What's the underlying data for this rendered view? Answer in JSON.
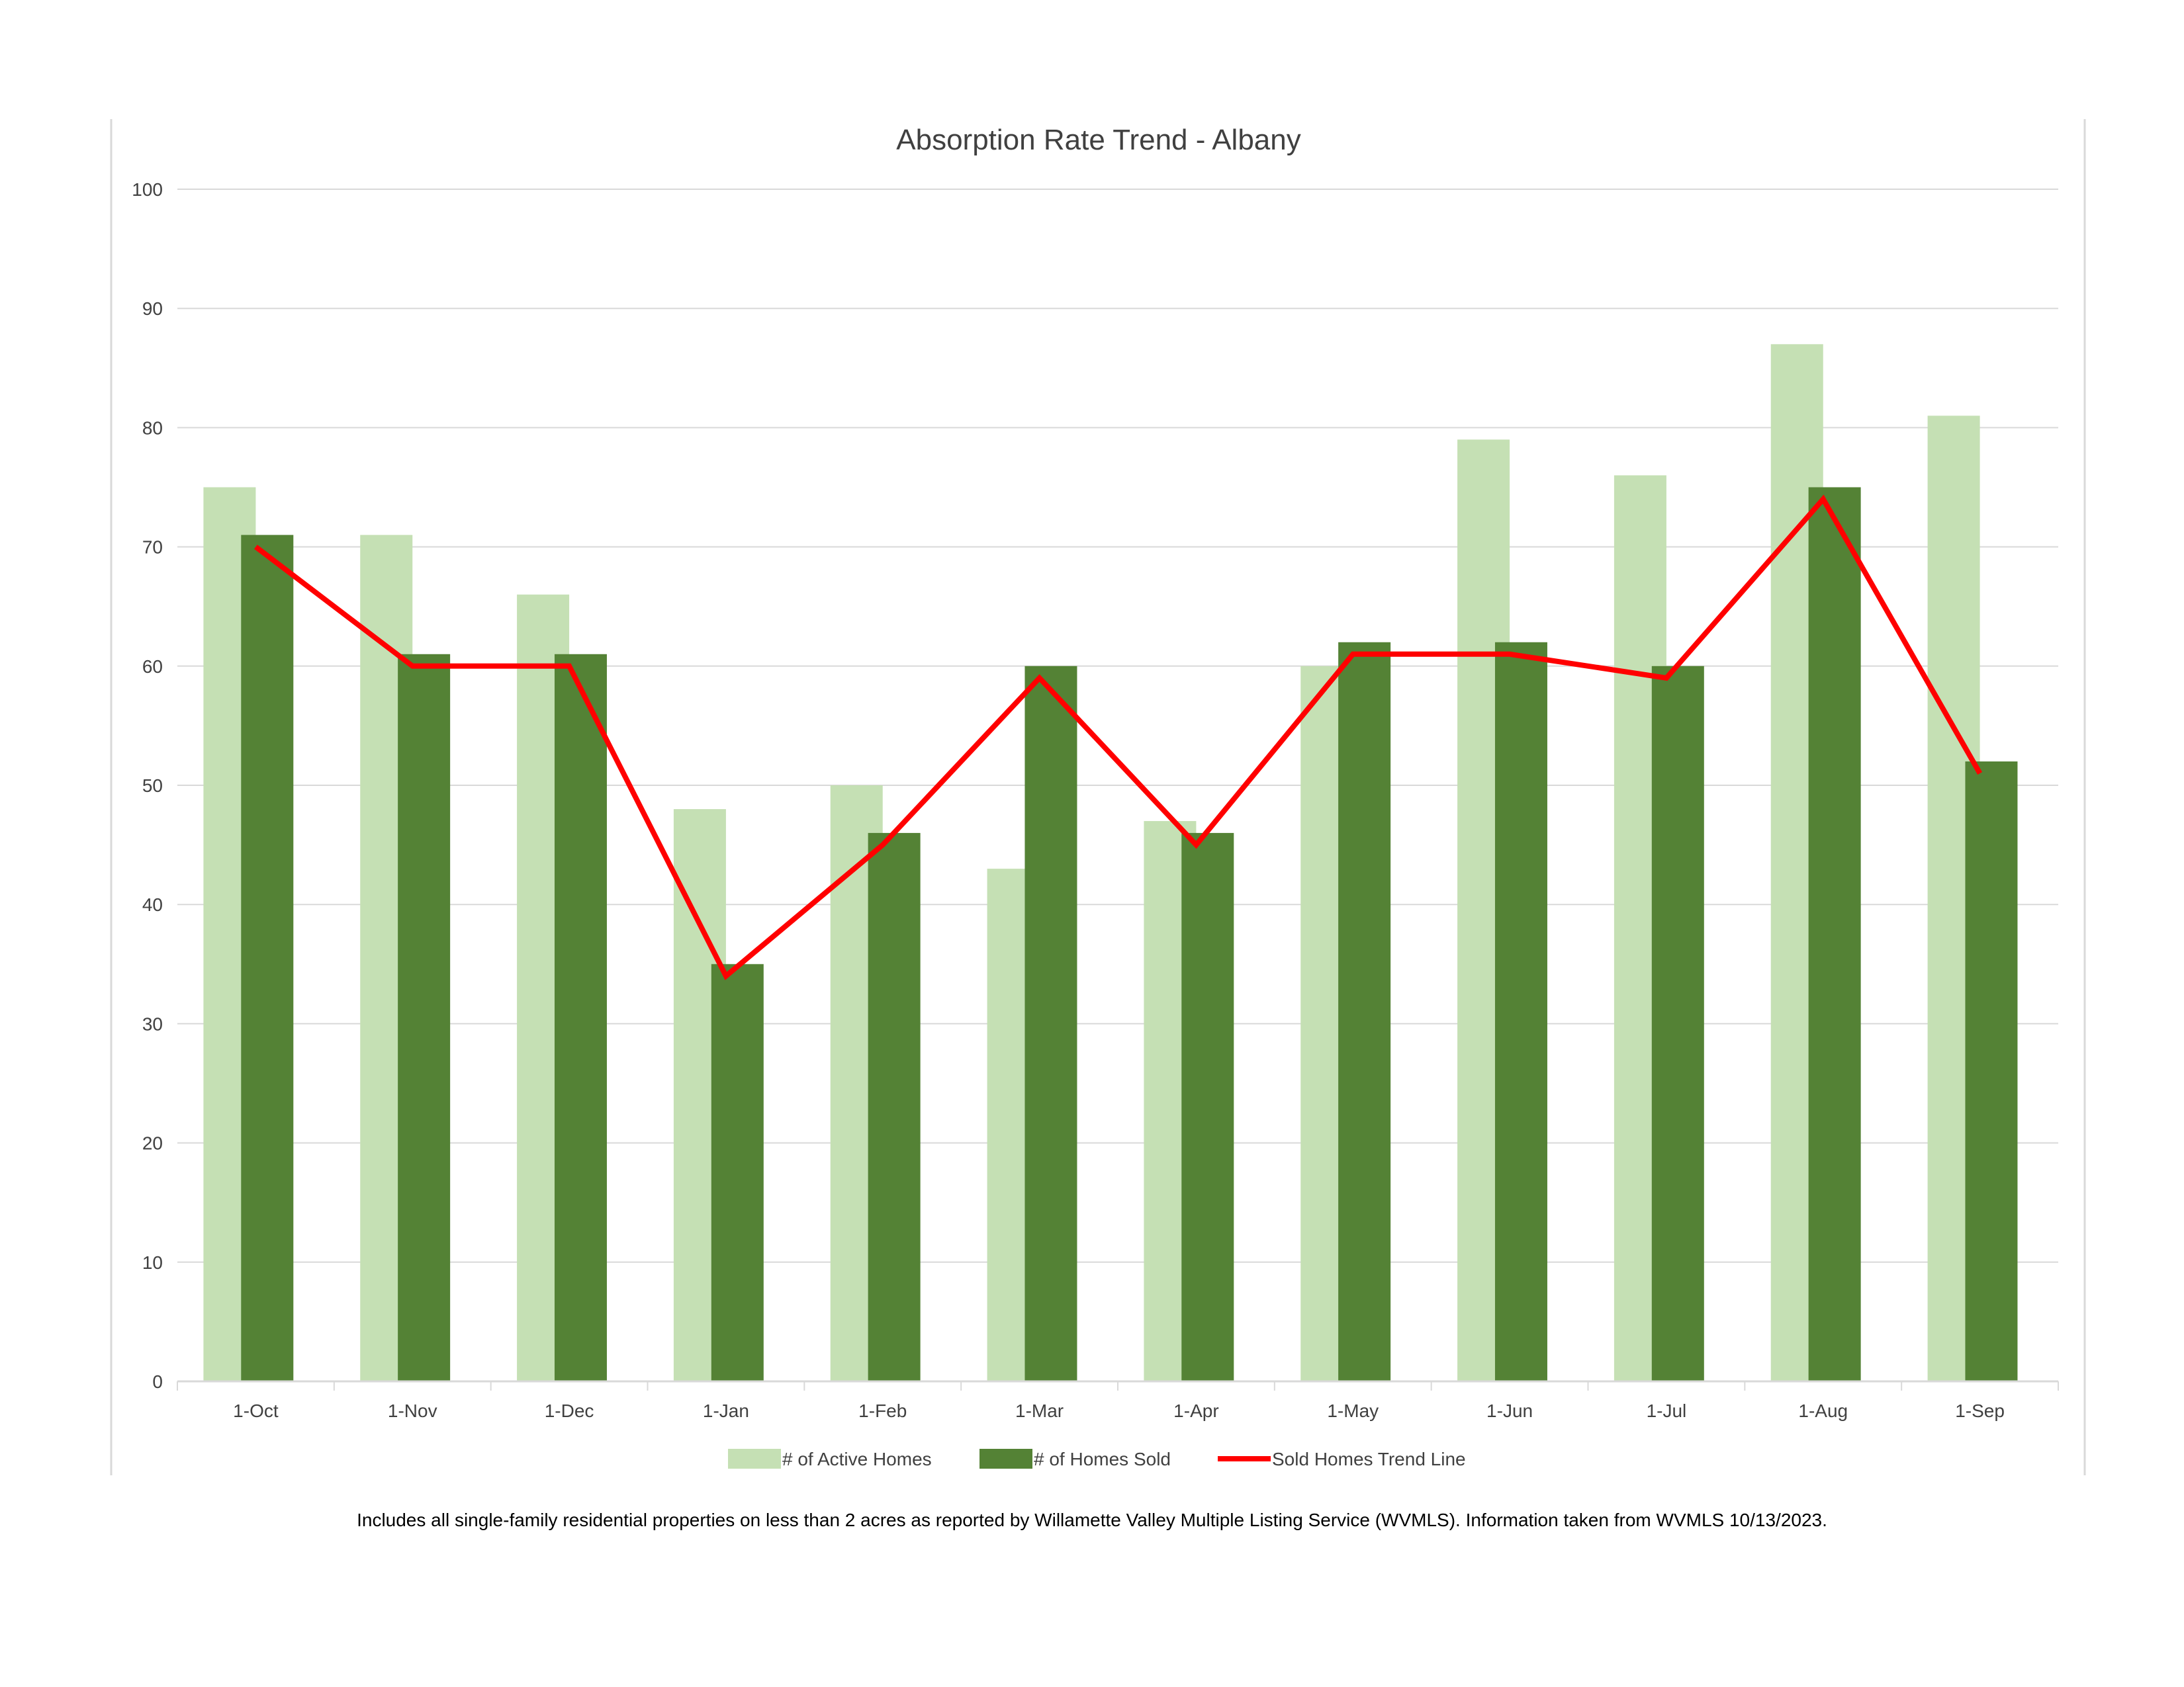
{
  "chart_data": {
    "type": "bar",
    "title": "Absorption Rate Trend - Albany",
    "xlabel": "",
    "ylabel": "",
    "ylim": [
      0,
      100
    ],
    "yticks": [
      0,
      10,
      20,
      30,
      40,
      50,
      60,
      70,
      80,
      90,
      100
    ],
    "grid": true,
    "legend_position": "bottom",
    "categories": [
      "1-Oct",
      "1-Nov",
      "1-Dec",
      "1-Jan",
      "1-Feb",
      "1-Mar",
      "1-Apr",
      "1-May",
      "1-Jun",
      "1-Jul",
      "1-Aug",
      "1-Sep"
    ],
    "series": [
      {
        "name": "# of Active Homes",
        "type": "bar",
        "color": "#c5e0b4",
        "values": [
          75,
          71,
          66,
          48,
          50,
          43,
          47,
          60,
          79,
          76,
          87,
          81
        ]
      },
      {
        "name": "# of Homes Sold",
        "type": "bar",
        "color": "#548235",
        "values": [
          71,
          61,
          61,
          35,
          46,
          60,
          46,
          62,
          62,
          60,
          75,
          52
        ]
      },
      {
        "name": "Sold Homes Trend Line",
        "type": "line",
        "color": "#ff0000",
        "values": [
          70,
          60,
          60,
          34,
          45,
          59,
          45,
          61,
          61,
          59,
          74,
          51
        ]
      }
    ]
  },
  "footnote": "Includes all single-family residential properties on less than 2 acres as reported by Willamette Valley Multiple Listing Service (WVMLS). Information taken from WVMLS 10/13/2023."
}
